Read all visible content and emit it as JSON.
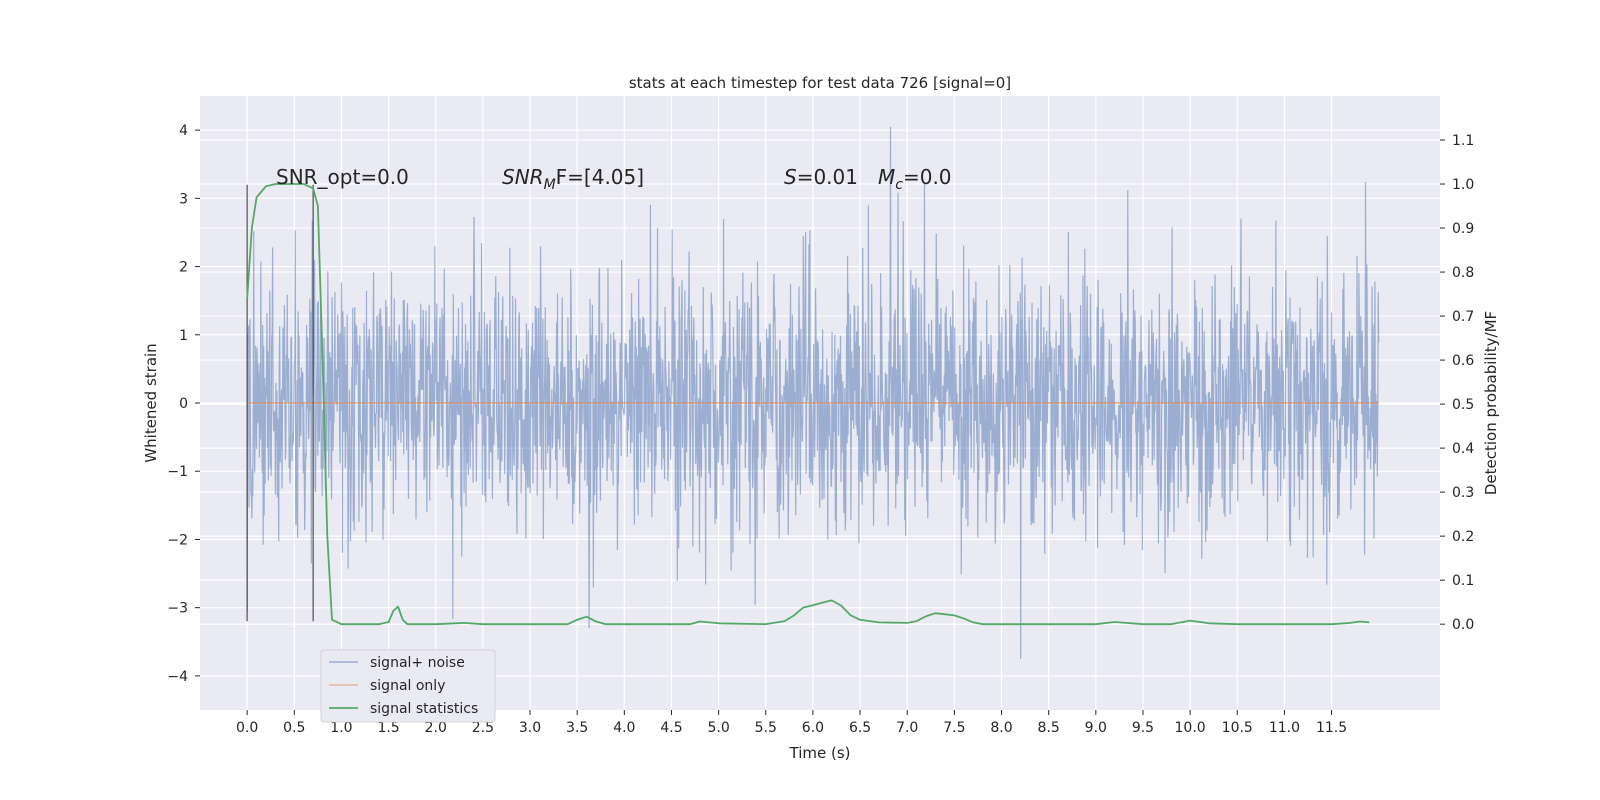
{
  "chart_data": {
    "type": "line",
    "title": "stats at each timestep for test data 726 [signal=0]",
    "xlabel": "Time (s)",
    "ylabel_left": "Whitened strain",
    "ylabel_right": "Detection probability/MF",
    "xlim": [
      -0.5,
      12.65
    ],
    "ylim_left": [
      -4.5,
      4.5
    ],
    "ylim_right": [
      -0.195,
      1.2
    ],
    "x_ticks": [
      "0.0",
      "0.5",
      "1.0",
      "1.5",
      "2.0",
      "2.5",
      "3.0",
      "3.5",
      "4.0",
      "4.5",
      "5.0",
      "5.5",
      "6.0",
      "6.5",
      "7.0",
      "7.5",
      "8.0",
      "8.5",
      "9.0",
      "9.5",
      "10.0",
      "10.5",
      "11.0",
      "11.5"
    ],
    "y_ticks_left": [
      "4",
      "3",
      "2",
      "1",
      "0",
      "−1",
      "−2",
      "−3",
      "−4"
    ],
    "y_ticks_right": [
      "1.1",
      "1.0",
      "0.9",
      "0.8",
      "0.7",
      "0.6",
      "0.5",
      "0.4",
      "0.3",
      "0.2",
      "0.1",
      "0.0"
    ],
    "grid": true,
    "legend_position": "lower-left",
    "legend": [
      "signal+ noise",
      "signal only",
      "signal statistics"
    ],
    "annotations": {
      "snr_opt": "SNR_opt=0.0",
      "snr_mf_main": "SNR",
      "snr_mf_sub": "M",
      "snr_mf_rest": "F=[4.05]",
      "s_main": "S",
      "s_rest": "=0.01",
      "mc_main": "M",
      "mc_sub": "c",
      "mc_rest": "=0.0"
    },
    "markers_x": [
      0.0,
      0.7
    ],
    "series": [
      {
        "name": "signal+ noise",
        "axis": "left",
        "color": "#4c72b0",
        "duration": 12.0,
        "noise_std": 1.0,
        "max": 4.05,
        "min": -3.75
      },
      {
        "name": "signal only",
        "axis": "left",
        "color": "#dd8452",
        "x": [
          0.0,
          12.0
        ],
        "y": [
          0.0,
          0.0
        ]
      },
      {
        "name": "signal statistics",
        "axis": "right",
        "color": "#55a868",
        "x": [
          0.0,
          0.05,
          0.1,
          0.2,
          0.3,
          0.45,
          0.6,
          0.65,
          0.7,
          0.75,
          0.8,
          0.85,
          0.9,
          1.0,
          1.2,
          1.4,
          1.5,
          1.55,
          1.6,
          1.65,
          1.7,
          1.75,
          1.85,
          2.0,
          2.2,
          2.3,
          2.5,
          3.0,
          3.4,
          3.5,
          3.6,
          3.7,
          3.8,
          4.0,
          4.5,
          4.7,
          4.8,
          5.0,
          5.5,
          5.7,
          5.8,
          5.9,
          6.0,
          6.1,
          6.2,
          6.3,
          6.4,
          6.5,
          6.7,
          7.0,
          7.1,
          7.2,
          7.3,
          7.5,
          7.6,
          7.7,
          7.8,
          7.9,
          8.0,
          8.5,
          9.0,
          9.2,
          9.5,
          9.8,
          10.0,
          10.2,
          10.5,
          11.0,
          11.5,
          11.7,
          11.8,
          11.9
        ],
        "y": [
          0.74,
          0.9,
          0.97,
          0.995,
          1.0,
          1.0,
          1.0,
          0.995,
          0.99,
          0.95,
          0.6,
          0.2,
          0.01,
          0.0,
          0.0,
          0.0,
          0.005,
          0.03,
          0.04,
          0.01,
          0.0,
          0.0,
          0.0,
          0.0,
          0.002,
          0.003,
          0.0,
          0.0,
          0.0,
          0.01,
          0.017,
          0.006,
          0.0,
          0.0,
          0.0,
          0.0,
          0.006,
          0.002,
          0.0,
          0.007,
          0.02,
          0.038,
          0.043,
          0.049,
          0.054,
          0.042,
          0.02,
          0.01,
          0.004,
          0.003,
          0.007,
          0.018,
          0.025,
          0.02,
          0.013,
          0.004,
          0.0,
          0.0,
          0.0,
          0.0,
          0.0,
          0.005,
          0.0,
          0.0,
          0.008,
          0.002,
          0.0,
          0.0,
          0.0,
          0.003,
          0.006,
          0.004
        ]
      }
    ]
  }
}
